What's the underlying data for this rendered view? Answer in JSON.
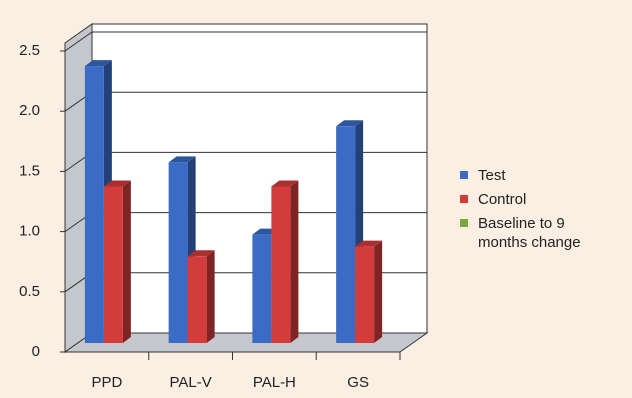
{
  "chart_data": {
    "type": "bar3d",
    "categories": [
      "PPD",
      "PAL-V",
      "PAL-H",
      "GS"
    ],
    "series": [
      {
        "name": "Test",
        "color": "#3a6cc6",
        "values": [
          2.3,
          1.5,
          0.9,
          1.8
        ]
      },
      {
        "name": "Control",
        "color": "#d43c3c",
        "values": [
          1.3,
          0.72,
          1.3,
          0.8
        ]
      },
      {
        "name": "Baseline to 9 months change",
        "color": "#7ba63c",
        "values": [
          null,
          null,
          null,
          null
        ]
      }
    ],
    "ylim": [
      0,
      2.5
    ],
    "yticks": [
      0,
      0.5,
      {
        "value": 1,
        "label": "1.0"
      },
      1.5,
      {
        "value": 2,
        "label": "2.0"
      },
      2.5
    ],
    "grid": true,
    "legend": "right"
  }
}
